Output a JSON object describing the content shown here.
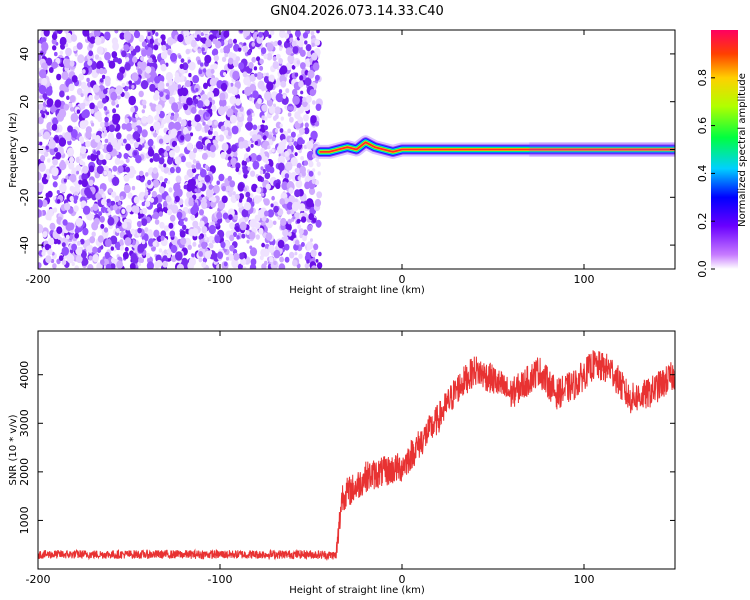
{
  "title": "GN04.2026.073.14.33.C40",
  "colors": {
    "axis": "#000000",
    "snr_line": "#e83232",
    "noise_dots": "#7a2cf0"
  },
  "chart_data": [
    {
      "type": "heatmap",
      "name": "spectrogram",
      "xlabel": "Height of straight line (km)",
      "ylabel": "Frequency (Hz)",
      "xlim": [
        -200,
        150
      ],
      "ylim": [
        -50,
        50
      ],
      "x_ticks": [
        -200,
        -100,
        0,
        100
      ],
      "x_tick_labels": [
        "-200",
        "-100",
        "0",
        "100"
      ],
      "y_ticks": [
        -40,
        -20,
        0,
        20,
        40
      ],
      "y_tick_labels": [
        "-40",
        "-20",
        "0",
        "20",
        "40"
      ],
      "noise_region_x": [
        -200,
        -45
      ],
      "signal_start_x": -45,
      "signal_trace": [
        {
          "x": -45,
          "y": -1
        },
        {
          "x": -40,
          "y": -1
        },
        {
          "x": -35,
          "y": 0
        },
        {
          "x": -30,
          "y": 1
        },
        {
          "x": -25,
          "y": 0
        },
        {
          "x": -20,
          "y": 3
        },
        {
          "x": -15,
          "y": 1
        },
        {
          "x": -10,
          "y": 0
        },
        {
          "x": -5,
          "y": -1
        },
        {
          "x": 0,
          "y": 0
        },
        {
          "x": 150,
          "y": 0
        }
      ],
      "colorbar": {
        "label": "Normalized spectral amplitude",
        "range": [
          0,
          1
        ],
        "ticks": [
          0.0,
          0.2,
          0.4,
          0.6,
          0.8
        ],
        "tick_labels": [
          "0.0",
          "0.2",
          "0.4",
          "0.6",
          "0.8"
        ]
      }
    },
    {
      "type": "line",
      "name": "snr",
      "xlabel": "Height of straight line (km)",
      "ylabel": "SNR (10 * v/v)",
      "xlim": [
        -200,
        150
      ],
      "ylim": [
        0,
        4900
      ],
      "x_ticks": [
        -200,
        -100,
        0,
        100
      ],
      "x_tick_labels": [
        "-200",
        "-100",
        "0",
        "100"
      ],
      "y_ticks": [
        1000,
        2000,
        3000,
        4000
      ],
      "y_tick_labels": [
        "1000",
        "2000",
        "3000",
        "4000"
      ],
      "series": [
        {
          "name": "SNR",
          "envelope": [
            {
              "x": -200,
              "y": 300
            },
            {
              "x": -50,
              "y": 300
            },
            {
              "x": -36,
              "y": 280
            },
            {
              "x": -33,
              "y": 1500
            },
            {
              "x": -25,
              "y": 1700
            },
            {
              "x": -20,
              "y": 1900
            },
            {
              "x": -10,
              "y": 2000
            },
            {
              "x": 0,
              "y": 2100
            },
            {
              "x": 10,
              "y": 2600
            },
            {
              "x": 20,
              "y": 3100
            },
            {
              "x": 30,
              "y": 3700
            },
            {
              "x": 40,
              "y": 4100
            },
            {
              "x": 50,
              "y": 3900
            },
            {
              "x": 60,
              "y": 3600
            },
            {
              "x": 70,
              "y": 3900
            },
            {
              "x": 75,
              "y": 4100
            },
            {
              "x": 85,
              "y": 3600
            },
            {
              "x": 95,
              "y": 3800
            },
            {
              "x": 105,
              "y": 4200
            },
            {
              "x": 115,
              "y": 4100
            },
            {
              "x": 125,
              "y": 3500
            },
            {
              "x": 135,
              "y": 3600
            },
            {
              "x": 150,
              "y": 4000
            }
          ]
        }
      ]
    }
  ]
}
